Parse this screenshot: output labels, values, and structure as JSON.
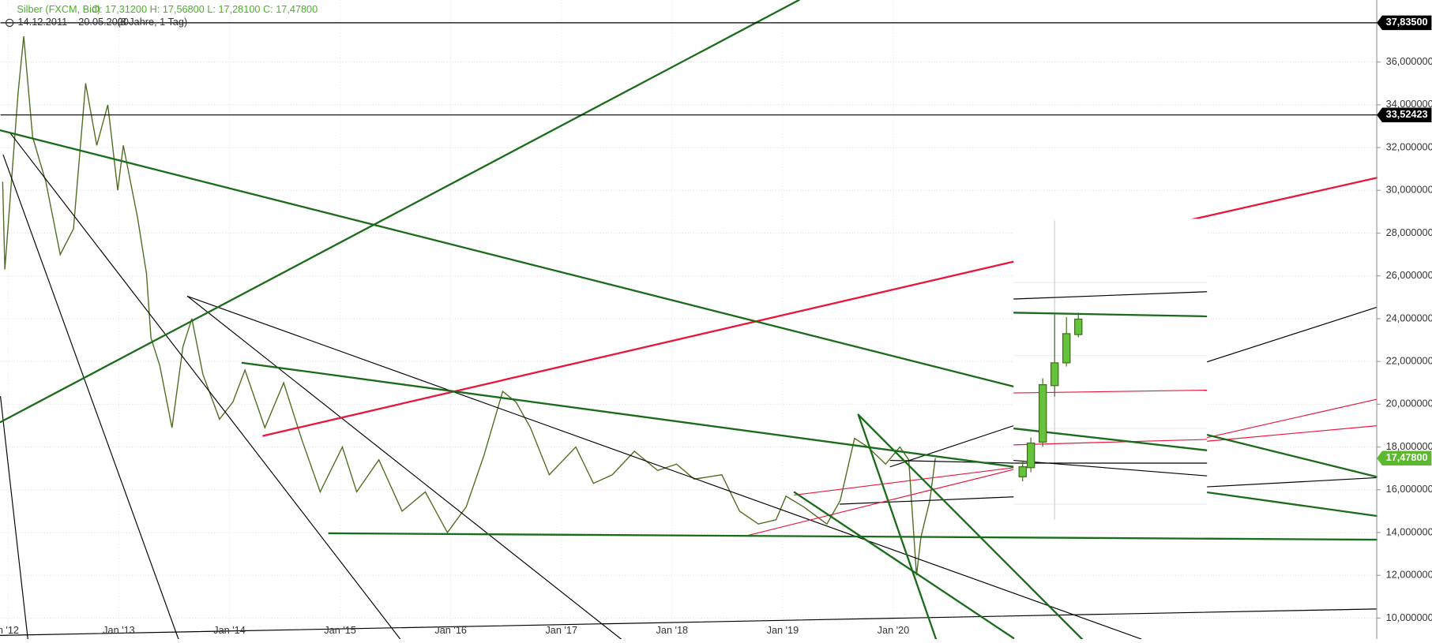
{
  "chart_data": {
    "type": "line",
    "title": "Silber (FXCM, Bid)",
    "ohlc": "O: 17,31200  H: 17,56800  L: 17,28100  C: 17,47800",
    "date_range": "14.12.2011 – 20.05.2020",
    "period": "(8 Jahre, 1 Tag)",
    "color": "#4f6e1f",
    "x": [
      2011.95,
      2011.97,
      2012.09,
      2012.14,
      2012.22,
      2012.34,
      2012.47,
      2012.59,
      2012.7,
      2012.8,
      2012.9,
      2012.99,
      2013.04,
      2013.17,
      2013.25,
      2013.29,
      2013.37,
      2013.48,
      2013.58,
      2013.66,
      2013.76,
      2013.91,
      2014.03,
      2014.14,
      2014.32,
      2014.49,
      2014.65,
      2014.82,
      2015.02,
      2015.15,
      2015.35,
      2015.56,
      2015.77,
      2015.97,
      2016.14,
      2016.3,
      2016.47,
      2016.59,
      2016.72,
      2016.89,
      2017.13,
      2017.29,
      2017.46,
      2017.66,
      2017.87,
      2018.04,
      2018.2,
      2018.45,
      2018.61,
      2018.78,
      2018.94,
      2019.03,
      2019.19,
      2019.4,
      2019.52,
      2019.65,
      2019.77,
      2019.93,
      2020.06,
      2020.14,
      2020.21,
      2020.25,
      2020.33,
      2020.38
    ],
    "values": [
      30.4,
      26.3,
      34.6,
      37.2,
      32.5,
      30.4,
      27.0,
      28.2,
      35.0,
      32.1,
      34.0,
      30.0,
      32.1,
      28.7,
      26.1,
      23.1,
      21.8,
      18.9,
      22.7,
      24.0,
      21.4,
      19.3,
      20.1,
      21.6,
      18.9,
      21.0,
      18.4,
      15.9,
      18.0,
      15.9,
      17.4,
      15.0,
      15.9,
      14.0,
      15.2,
      17.6,
      20.6,
      20.1,
      18.9,
      16.7,
      18.0,
      16.3,
      16.7,
      17.8,
      16.9,
      17.2,
      16.5,
      16.7,
      15.0,
      14.4,
      14.6,
      15.7,
      15.2,
      14.4,
      15.5,
      18.4,
      18.0,
      17.2,
      18.0,
      17.4,
      12.0,
      13.8,
      15.5,
      17.478
    ],
    "xlim": [
      2011.93,
      2024.37
    ],
    "ylim": [
      9.02,
      38.9
    ],
    "xticks": [
      {
        "value": 2012,
        "label": "n '12"
      },
      {
        "value": 2013,
        "label": "Jan '13"
      },
      {
        "value": 2014,
        "label": "Jan '14"
      },
      {
        "value": 2015,
        "label": "Jan '15"
      },
      {
        "value": 2016,
        "label": "Jan '16"
      },
      {
        "value": 2017,
        "label": "Jan '17"
      },
      {
        "value": 2018,
        "label": "Jan '18"
      },
      {
        "value": 2019,
        "label": "Jan '19"
      },
      {
        "value": 2020,
        "label": "Jan '20"
      }
    ],
    "yticks": [
      {
        "value": 10,
        "label": "10,000000"
      },
      {
        "value": 12,
        "label": "12,000000"
      },
      {
        "value": 14,
        "label": "14,000000"
      },
      {
        "value": 16,
        "label": "16,000000"
      },
      {
        "value": 18,
        "label": "18,000000"
      },
      {
        "value": 20,
        "label": "20,000000"
      },
      {
        "value": 22,
        "label": "22,000000"
      },
      {
        "value": 24,
        "label": "24,000000"
      },
      {
        "value": 26,
        "label": "26,000000"
      },
      {
        "value": 28,
        "label": "28,000000"
      },
      {
        "value": 30,
        "label": "30,000000"
      },
      {
        "value": 32,
        "label": "32,000000"
      },
      {
        "value": 34,
        "label": "34,000000"
      },
      {
        "value": 36,
        "label": "36,000000"
      }
    ],
    "grid": true,
    "price_markers": [
      {
        "value": 37.835,
        "label": "37,83500",
        "color": "#000000",
        "line": true
      },
      {
        "value": 33.52423,
        "label": "33,52423",
        "color": "#000000",
        "line": true
      },
      {
        "value": 17.478,
        "label": "17,47800",
        "color": "#5cb82e",
        "line": false
      }
    ]
  }
}
